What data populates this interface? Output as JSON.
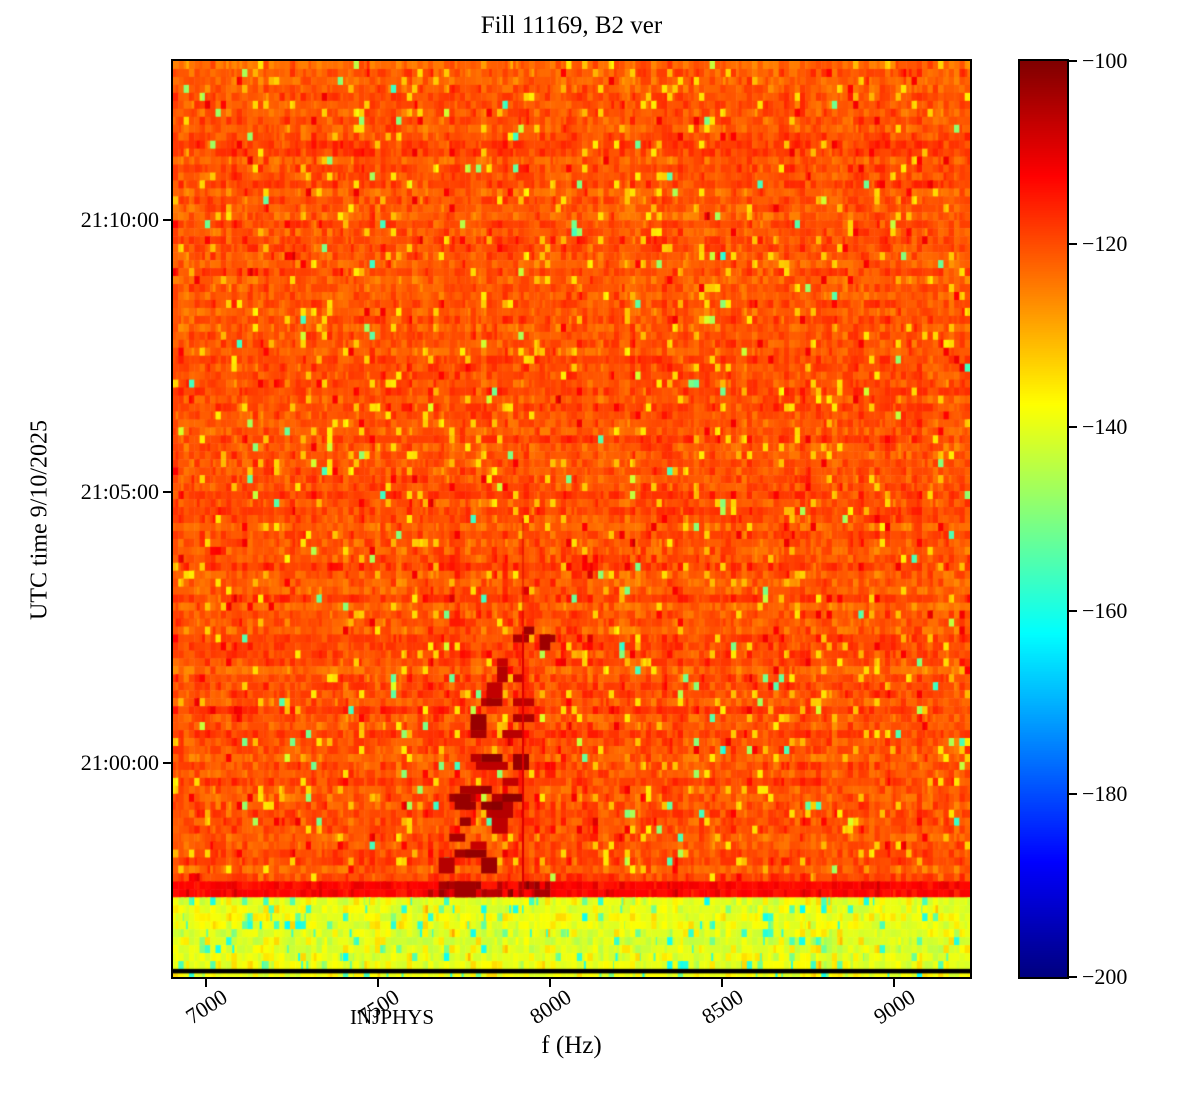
{
  "figure": {
    "background": "#ffffff"
  },
  "chart_data": {
    "type": "heatmap",
    "subtype": "spectrogram",
    "title": "Fill 11169, B2 ver",
    "xlabel": "f (Hz)",
    "ylabel": "UTC time 9/10/2025",
    "colormap": "jet",
    "x_range_hz": [
      6905,
      9220
    ],
    "x_ticks": [
      7000,
      7500,
      8000,
      8500,
      9000
    ],
    "x_tick_labels": [
      "7000",
      "7500",
      "8000",
      "8500",
      "9000"
    ],
    "y_time_start": "20:56:04",
    "y_time_end": "21:12:56",
    "y_ticks": [
      "21:00:00",
      "21:05:00",
      "21:10:00"
    ],
    "colorbar": {
      "vmin": -200,
      "vmax": -100,
      "ticks": [
        -100,
        -120,
        -140,
        -160,
        -180,
        -200
      ],
      "tick_labels": [
        "−100",
        "−120",
        "−140",
        "−160",
        "−180",
        "−200"
      ]
    },
    "annotation": {
      "text": "INJPHYS",
      "position": "bottom-left"
    },
    "grid": {
      "cols": 150,
      "rows": 115
    },
    "regions": [
      {
        "name": "beam-noise",
        "time_start": "20:57:48",
        "time_end": "21:12:56",
        "base_db": -120.5,
        "spread_db": 3.8
      },
      {
        "name": "hot-band",
        "time_start": "20:57:35",
        "time_end": "20:57:48",
        "base_db": -112.5,
        "spread_db": 2.5
      },
      {
        "name": "low-power-band",
        "time_start": "20:56:04",
        "time_end": "20:57:35",
        "base_db": -140.5,
        "spread_db": 3.2
      },
      {
        "name": "injphys-line",
        "time_start": "20:56:08",
        "time_end": "20:56:13",
        "color": "#000000"
      }
    ],
    "features": {
      "injection_cluster": {
        "f_min_hz": 7640,
        "f_max_hz": 8120,
        "time_start": "20:57:35",
        "time_end": "21:04:00",
        "db_min": -107,
        "db_max": -100,
        "blob_count": 44
      },
      "vertical_line": {
        "f_hz": 7918,
        "time_start": "20:57:35",
        "time_end": "21:03:30",
        "db": -109
      }
    },
    "seed": 20250910
  }
}
